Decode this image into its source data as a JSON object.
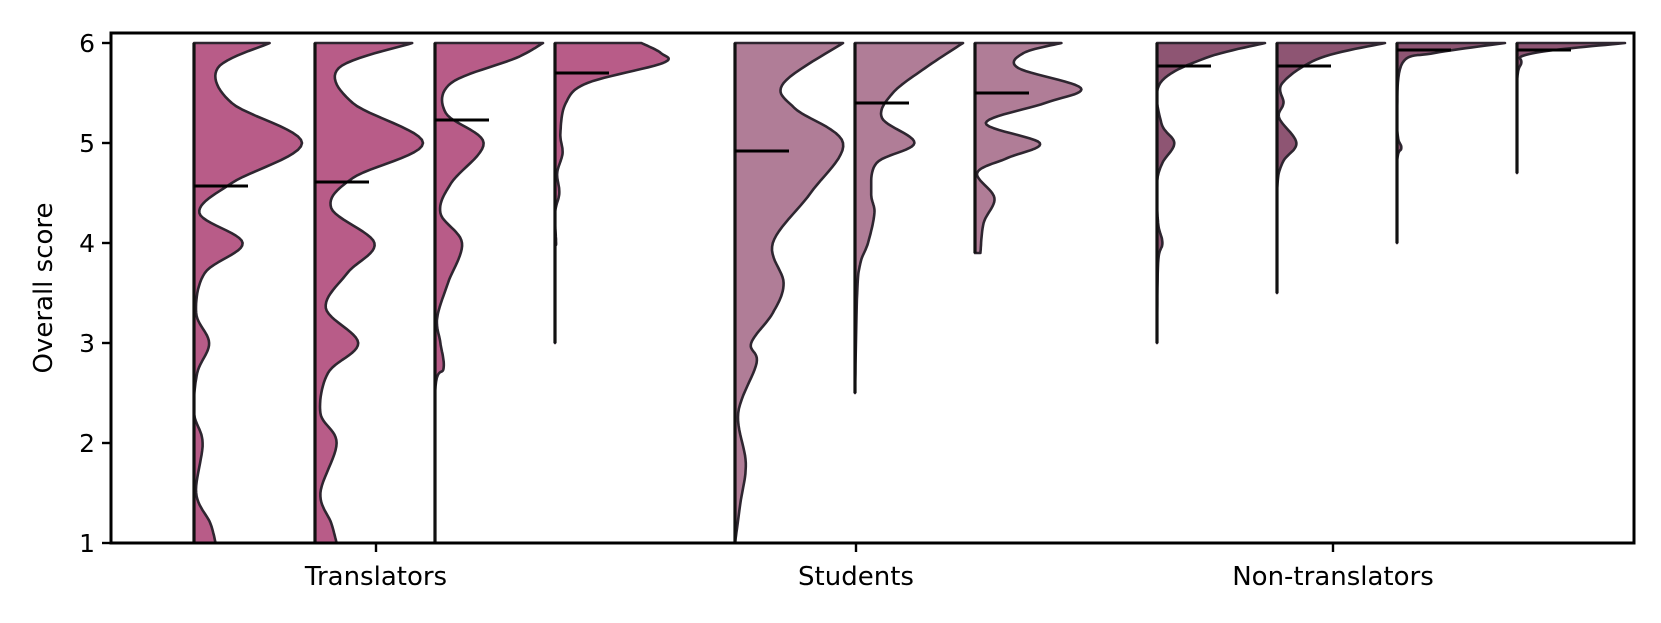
{
  "chart_data": {
    "type": "violin",
    "ylabel": "Overall score",
    "ylim": [
      1,
      6
    ],
    "yticks": [
      1,
      2,
      3,
      4,
      5,
      6
    ],
    "groups": [
      {
        "name": "Translators",
        "color": "#b85c88",
        "violins": [
          {
            "mean": 4.57,
            "min": 1.0,
            "max": 6.0,
            "density": [
              [
                1.0,
                0.2
              ],
              [
                1.2,
                0.15
              ],
              [
                1.5,
                0.02
              ],
              [
                2.0,
                0.08
              ],
              [
                2.3,
                0.0
              ],
              [
                2.7,
                0.03
              ],
              [
                3.0,
                0.14
              ],
              [
                3.3,
                0.02
              ],
              [
                3.7,
                0.1
              ],
              [
                4.0,
                0.45
              ],
              [
                4.3,
                0.05
              ],
              [
                4.6,
                0.35
              ],
              [
                5.0,
                1.0
              ],
              [
                5.4,
                0.35
              ],
              [
                5.75,
                0.22
              ],
              [
                6.0,
                0.7
              ]
            ]
          },
          {
            "mean": 4.61,
            "min": 1.0,
            "max": 6.0,
            "density": [
              [
                1.0,
                0.2
              ],
              [
                1.2,
                0.15
              ],
              [
                1.5,
                0.05
              ],
              [
                2.0,
                0.2
              ],
              [
                2.3,
                0.05
              ],
              [
                2.7,
                0.12
              ],
              [
                3.0,
                0.4
              ],
              [
                3.35,
                0.1
              ],
              [
                3.7,
                0.3
              ],
              [
                4.0,
                0.55
              ],
              [
                4.35,
                0.15
              ],
              [
                4.65,
                0.35
              ],
              [
                5.0,
                1.0
              ],
              [
                5.4,
                0.35
              ],
              [
                5.75,
                0.22
              ],
              [
                6.0,
                0.9
              ]
            ]
          },
          {
            "mean": 5.23,
            "min": 1.0,
            "max": 6.0,
            "density": [
              [
                1.0,
                0.0
              ],
              [
                2.5,
                0.0
              ],
              [
                2.75,
                0.08
              ],
              [
                3.0,
                0.05
              ],
              [
                3.25,
                0.02
              ],
              [
                3.6,
                0.12
              ],
              [
                4.0,
                0.25
              ],
              [
                4.3,
                0.05
              ],
              [
                4.6,
                0.15
              ],
              [
                5.0,
                0.45
              ],
              [
                5.3,
                0.1
              ],
              [
                5.6,
                0.15
              ],
              [
                5.85,
                0.75
              ],
              [
                6.0,
                1.0
              ]
            ]
          },
          {
            "mean": 5.7,
            "min": 3.0,
            "max": 6.0,
            "density": [
              [
                3.0,
                0.0
              ],
              [
                3.9,
                0.0
              ],
              [
                4.0,
                0.01
              ],
              [
                4.3,
                0.0
              ],
              [
                4.5,
                0.04
              ],
              [
                4.7,
                0.02
              ],
              [
                4.9,
                0.07
              ],
              [
                5.1,
                0.05
              ],
              [
                5.4,
                0.1
              ],
              [
                5.6,
                0.3
              ],
              [
                5.8,
                1.0
              ],
              [
                5.9,
                0.98
              ],
              [
                6.0,
                0.8
              ]
            ]
          }
        ]
      },
      {
        "name": "Students",
        "color": "#b07d97",
        "violins": [
          {
            "mean": 4.92,
            "min": 1.0,
            "max": 6.0,
            "density": [
              [
                1.0,
                0.0
              ],
              [
                1.4,
                0.05
              ],
              [
                1.8,
                0.1
              ],
              [
                2.3,
                0.03
              ],
              [
                2.8,
                0.2
              ],
              [
                3.0,
                0.15
              ],
              [
                3.3,
                0.35
              ],
              [
                3.6,
                0.45
              ],
              [
                4.0,
                0.35
              ],
              [
                4.5,
                0.7
              ],
              [
                5.0,
                1.0
              ],
              [
                5.35,
                0.55
              ],
              [
                5.6,
                0.45
              ],
              [
                6.0,
                1.0
              ]
            ]
          },
          {
            "mean": 5.4,
            "min": 2.5,
            "max": 6.0,
            "density": [
              [
                2.5,
                0.0
              ],
              [
                3.5,
                0.02
              ],
              [
                3.8,
                0.05
              ],
              [
                4.0,
                0.12
              ],
              [
                4.3,
                0.18
              ],
              [
                4.5,
                0.15
              ],
              [
                4.8,
                0.2
              ],
              [
                5.0,
                0.55
              ],
              [
                5.25,
                0.25
              ],
              [
                5.5,
                0.35
              ],
              [
                5.75,
                0.65
              ],
              [
                6.0,
                1.0
              ]
            ]
          },
          {
            "mean": 5.5,
            "min": 3.9,
            "max": 6.0,
            "density": [
              [
                3.9,
                0.05
              ],
              [
                4.2,
                0.08
              ],
              [
                4.45,
                0.18
              ],
              [
                4.7,
                0.02
              ],
              [
                4.85,
                0.3
              ],
              [
                5.0,
                0.6
              ],
              [
                5.2,
                0.1
              ],
              [
                5.4,
                0.65
              ],
              [
                5.55,
                0.98
              ],
              [
                5.75,
                0.4
              ],
              [
                5.9,
                0.45
              ],
              [
                6.0,
                0.8
              ]
            ]
          }
        ]
      },
      {
        "name": "Non-translators",
        "color": "#8e5573",
        "violins": [
          {
            "mean": 5.77,
            "min": 3.0,
            "max": 6.0,
            "density": [
              [
                3.0,
                0.0
              ],
              [
                3.8,
                0.01
              ],
              [
                4.0,
                0.05
              ],
              [
                4.2,
                0.01
              ],
              [
                4.6,
                0.0
              ],
              [
                4.8,
                0.05
              ],
              [
                5.0,
                0.16
              ],
              [
                5.2,
                0.04
              ],
              [
                5.6,
                0.03
              ],
              [
                5.85,
                0.45
              ],
              [
                6.0,
                1.0
              ]
            ]
          },
          {
            "mean": 5.77,
            "min": 3.5,
            "max": 6.0,
            "density": [
              [
                3.5,
                0.0
              ],
              [
                4.5,
                0.0
              ],
              [
                4.8,
                0.05
              ],
              [
                5.0,
                0.18
              ],
              [
                5.25,
                0.02
              ],
              [
                5.4,
                0.06
              ],
              [
                5.6,
                0.05
              ],
              [
                5.85,
                0.4
              ],
              [
                6.0,
                1.0
              ]
            ]
          },
          {
            "mean": 5.93,
            "min": 4.0,
            "max": 6.0,
            "density": [
              [
                4.0,
                0.0
              ],
              [
                4.8,
                0.0
              ],
              [
                4.95,
                0.04
              ],
              [
                5.05,
                0.01
              ],
              [
                5.3,
                0.0
              ],
              [
                5.8,
                0.05
              ],
              [
                5.9,
                0.35
              ],
              [
                6.0,
                1.0
              ]
            ]
          },
          {
            "mean": 5.93,
            "min": 4.7,
            "max": 6.0,
            "density": [
              [
                4.7,
                0.0
              ],
              [
                5.6,
                0.0
              ],
              [
                5.8,
                0.04
              ],
              [
                5.87,
                0.05
              ],
              [
                5.93,
                0.35
              ],
              [
                6.0,
                1.0
              ]
            ]
          }
        ]
      }
    ]
  }
}
